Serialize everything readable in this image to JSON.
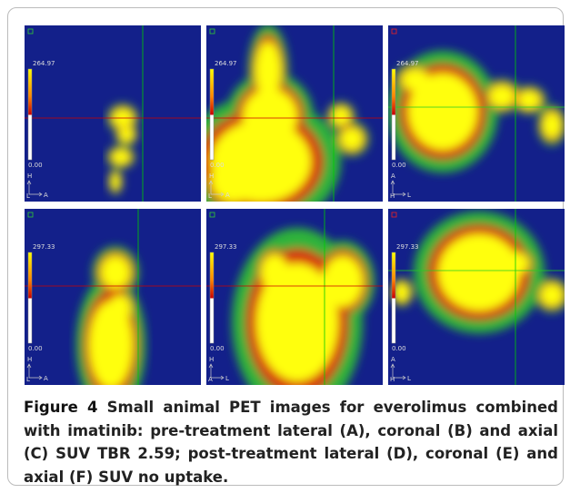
{
  "panels": [
    {
      "max": "264.97",
      "min": "0.00",
      "up": "H",
      "from": "L",
      "to": "A"
    },
    {
      "max": "264.97",
      "min": "0.00",
      "up": "H",
      "from": "L",
      "to": "A"
    },
    {
      "max": "264.97",
      "min": "0.00",
      "up": "A",
      "from": "H",
      "to": "L"
    },
    {
      "max": "297.33",
      "min": "0.00",
      "up": "H",
      "from": "L",
      "to": "A"
    },
    {
      "max": "297.33",
      "min": "0.00",
      "up": "H",
      "from": "A",
      "to": "L"
    },
    {
      "max": "297.33",
      "min": "0.00",
      "up": "A",
      "from": "H",
      "to": "L"
    }
  ],
  "caption": {
    "label": "Figure 4",
    "text": "Small animal PET images for everolimus combined with imatinib: pre-treatment lateral (A), coronal (B) and axial (C) SUV TBR 2.59; post-treatment lateral (D), coronal (E) and axial (F) SUV no uptake."
  }
}
